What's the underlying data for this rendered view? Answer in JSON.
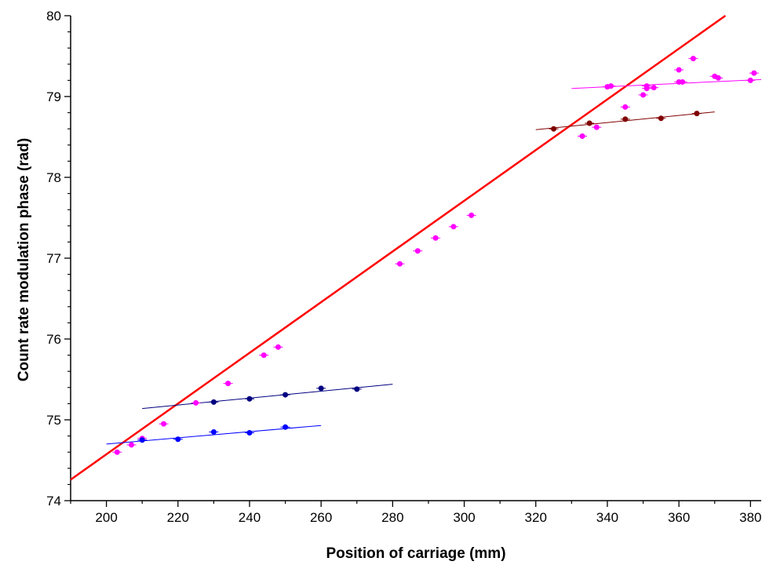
{
  "chart_data": {
    "type": "scatter",
    "title": "",
    "xlabel": "Position of carriage (mm)",
    "ylabel": "Count rate modulation phase (rad)",
    "xlim": [
      190,
      383
    ],
    "ylim": [
      74,
      80
    ],
    "xticks": [
      200,
      220,
      240,
      260,
      280,
      300,
      320,
      340,
      360,
      380
    ],
    "yticks": [
      74,
      75,
      76,
      77,
      78,
      79,
      80
    ],
    "grid": false,
    "legend": "none",
    "series": [
      {
        "color": "#ff00ff",
        "points": [
          [
            203,
            74.6
          ],
          [
            207,
            74.69
          ],
          [
            210,
            74.77
          ],
          [
            216,
            74.95
          ],
          [
            225,
            75.21
          ],
          [
            234,
            75.45
          ],
          [
            244,
            75.8
          ],
          [
            248,
            75.9
          ],
          [
            282,
            76.93
          ],
          [
            287,
            77.09
          ],
          [
            292,
            77.25
          ],
          [
            297,
            77.39
          ],
          [
            302,
            77.53
          ],
          [
            333,
            78.51
          ],
          [
            337,
            78.62
          ],
          [
            345,
            78.87
          ],
          [
            350,
            79.02
          ],
          [
            351,
            79.1
          ],
          [
            353,
            79.11
          ],
          [
            360,
            79.33
          ],
          [
            364,
            79.47
          ],
          [
            340,
            79.12
          ],
          [
            341,
            79.13
          ],
          [
            351,
            79.13
          ],
          [
            360,
            79.18
          ],
          [
            361,
            79.18
          ],
          [
            370,
            79.25
          ],
          [
            371,
            79.23
          ],
          [
            380,
            79.2
          ],
          [
            381,
            79.29
          ]
        ]
      },
      {
        "color": "#0000ff",
        "points": [
          [
            210,
            74.75
          ],
          [
            220,
            74.76
          ],
          [
            230,
            74.85
          ],
          [
            240,
            74.84
          ],
          [
            250,
            74.91
          ]
        ]
      },
      {
        "color": "#000080",
        "points": [
          [
            230,
            75.22
          ],
          [
            240,
            75.26
          ],
          [
            250,
            75.31
          ],
          [
            260,
            75.39
          ],
          [
            270,
            75.38
          ]
        ]
      },
      {
        "color": "#800000",
        "points": [
          [
            325,
            78.6
          ],
          [
            335,
            78.67
          ],
          [
            345,
            78.72
          ],
          [
            355,
            78.73
          ],
          [
            365,
            78.79
          ]
        ]
      }
    ],
    "fit_lines": [
      {
        "color": "#ff0000",
        "x": [
          190,
          373
        ],
        "y": [
          74.26,
          80.0
        ],
        "width": 2.5
      },
      {
        "color": "#0000ff",
        "x": [
          200,
          260
        ],
        "y": [
          74.7,
          74.93
        ],
        "width": 1
      },
      {
        "color": "#000080",
        "x": [
          210,
          280
        ],
        "y": [
          75.14,
          75.44
        ],
        "width": 1
      },
      {
        "color": "#800000",
        "x": [
          320,
          370
        ],
        "y": [
          78.59,
          78.81
        ],
        "width": 1
      },
      {
        "color": "#ff00ff",
        "x": [
          330,
          383
        ],
        "y": [
          79.1,
          79.21
        ],
        "width": 1
      }
    ]
  }
}
